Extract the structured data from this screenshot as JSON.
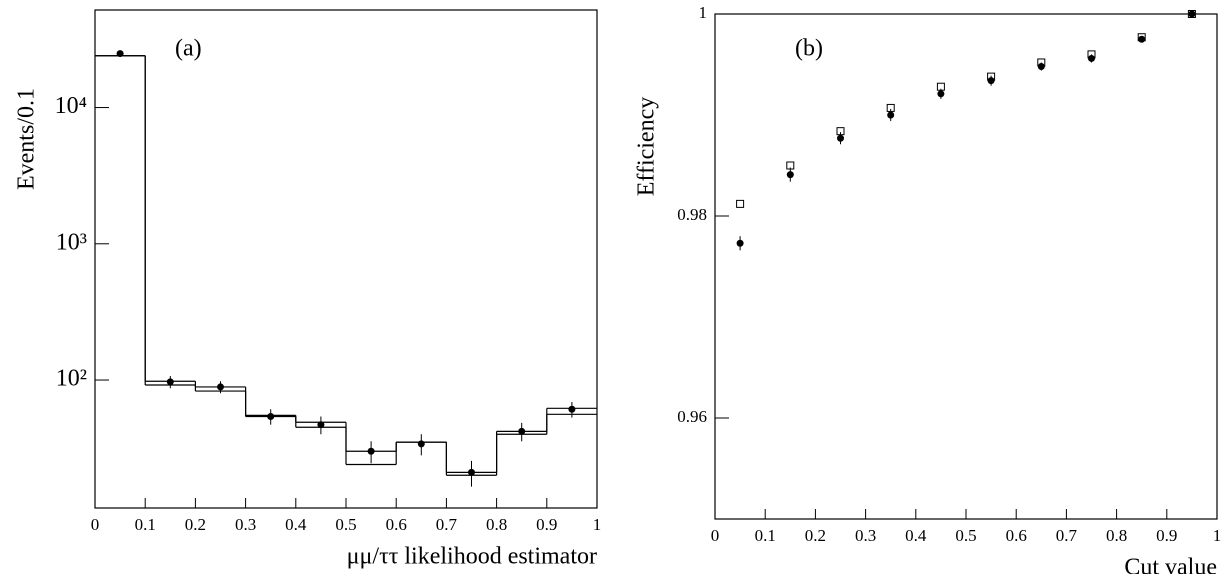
{
  "chart_data": [
    {
      "type": "histogram",
      "annotation": "(a)",
      "y_label": "Events/0.1",
      "x_label": "μμ/ττ likelihood estimator",
      "log_y": true,
      "color": "#000000",
      "bins": [
        0,
        0.1,
        0.2,
        0.3,
        0.4,
        0.5,
        0.6,
        0.7,
        0.8,
        0.9,
        1
      ],
      "series": [
        {
          "values": [
            24000,
            98,
            89,
            55,
            49,
            30,
            35,
            21,
            42,
            62
          ]
        },
        {
          "values": [
            24000,
            92,
            83,
            54,
            45,
            24,
            35,
            20,
            40,
            56
          ]
        }
      ],
      "points": {
        "x": [
          0.05,
          0.15,
          0.25,
          0.35,
          0.45,
          0.55,
          0.65,
          0.75,
          0.85,
          0.95
        ],
        "values": [
          24900,
          97,
          89,
          54,
          47,
          30,
          34,
          21,
          42,
          61
        ],
        "errors": [
          158,
          10,
          9,
          7,
          7,
          5.5,
          6,
          4.5,
          6.5,
          8
        ]
      },
      "xlim": [
        0,
        1
      ],
      "xticks": [
        0,
        0.1,
        0.2,
        0.3,
        0.4,
        0.5,
        0.6,
        0.7,
        0.8,
        0.9,
        1
      ],
      "ylim": [
        11.5,
        52000
      ],
      "yticks": [
        {
          "value": 100,
          "label": "10²"
        },
        {
          "value": 1000,
          "label": "10³"
        },
        {
          "value": 10000,
          "label": "10⁴"
        }
      ]
    },
    {
      "type": "scatter",
      "annotation": "(b)",
      "y_label": "Efficiency",
      "x_label": "Cut value",
      "color": "#000000",
      "x": [
        0.05,
        0.15,
        0.25,
        0.35,
        0.45,
        0.55,
        0.65,
        0.75,
        0.85,
        0.95
      ],
      "series": [
        {
          "marker": "open-square",
          "values": [
            0.9812,
            0.985,
            0.9884,
            0.9907,
            0.9928,
            0.9938,
            0.9952,
            0.996,
            0.9977,
            1.0
          ]
        },
        {
          "marker": "filled-circle",
          "values": [
            0.9773,
            0.9841,
            0.9877,
            0.99,
            0.9921,
            0.9934,
            0.9948,
            0.9956,
            0.9975,
            1.0
          ],
          "errors": [
            0.0007,
            0.0007,
            0.0006,
            0.0006,
            0.0005,
            0.0005,
            0.0004,
            0.0004,
            0.0003,
            0.0001
          ]
        }
      ],
      "xlim": [
        0,
        1
      ],
      "xticks": [
        0,
        0.1,
        0.2,
        0.3,
        0.4,
        0.5,
        0.6,
        0.7,
        0.8,
        0.9,
        1
      ],
      "ylim": [
        0.95,
        1
      ],
      "yticks": [
        0.96,
        0.98,
        1
      ]
    }
  ]
}
